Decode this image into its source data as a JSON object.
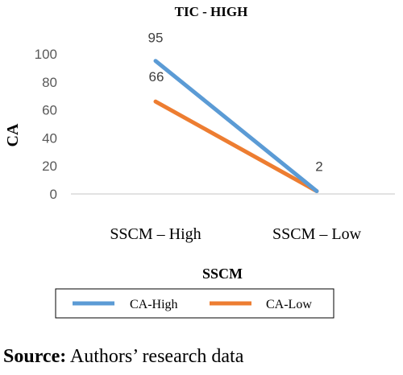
{
  "chart_data": {
    "type": "line",
    "title": "TIC - HIGH",
    "xlabel": "SSCM",
    "ylabel": "CA",
    "categories": [
      "SSCM – High",
      "SSCM – Low"
    ],
    "ylim": [
      0,
      100
    ],
    "yticks": [
      0,
      20,
      40,
      60,
      80,
      100
    ],
    "grid": false,
    "legend_placement": "bottom",
    "series": [
      {
        "name": "CA-High",
        "values": [
          95,
          2
        ],
        "color": "#5B9BD5",
        "labels": [
          "95",
          "2"
        ]
      },
      {
        "name": "CA-Low",
        "values": [
          66,
          2
        ],
        "color": "#ED7D31",
        "labels": [
          "66",
          ""
        ]
      }
    ]
  },
  "source": {
    "label": "Source:",
    "text": " Authors’ research data"
  }
}
